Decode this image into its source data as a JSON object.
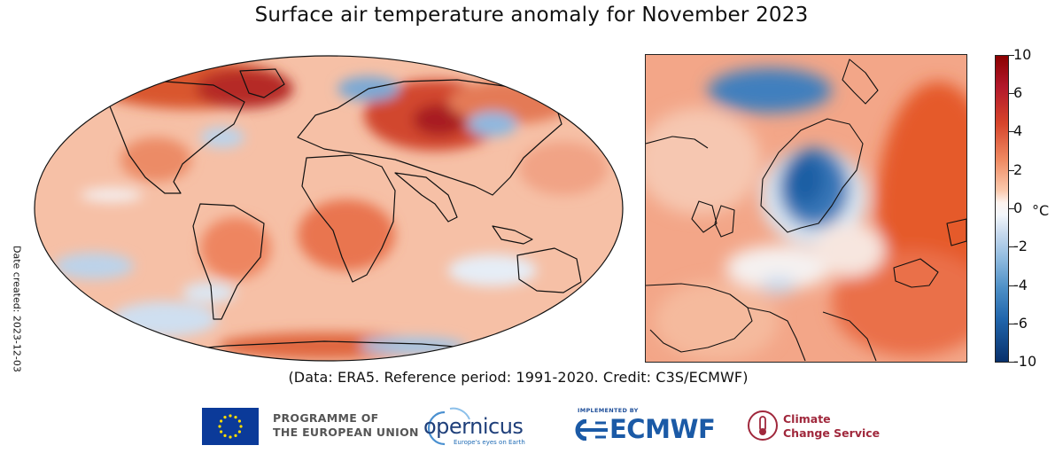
{
  "title": "Surface air temperature anomaly for November 2023",
  "date_created": "Date created: 2023-12-03",
  "credit": "(Data: ERA5.  Reference period: 1991-2020.  Credit: C3S/ECMWF)",
  "colorbar": {
    "unit": "°C",
    "min": -10,
    "max": 10,
    "tick_labels": [
      "10",
      "6",
      "4",
      "2",
      "0",
      "-2",
      "-4",
      "-6",
      "-10"
    ],
    "colors": {
      "warm_extreme": "#8b0000",
      "warm": "#ef8a62",
      "neutral": "#f7f7f7",
      "cool": "#92bce0",
      "cool_extreme": "#08306b"
    }
  },
  "logos": {
    "eu_line1": "PROGRAMME OF",
    "eu_line2": "THE EUROPEAN UNION",
    "copernicus_word": "opernicus",
    "copernicus_tagline": "Europe's eyes on Earth",
    "implemented_by": "IMPLEMENTED BY",
    "ecmwf": "ECMWF",
    "c3s_line1": "Climate",
    "c3s_line2": "Change Service"
  }
}
